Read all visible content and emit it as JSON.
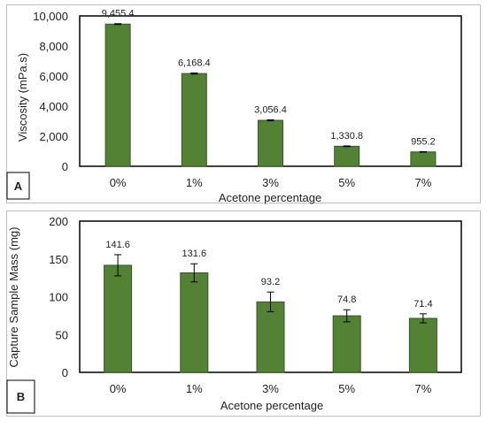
{
  "colors": {
    "bar": "#548235",
    "bar_edge": "#375623",
    "axis": "#000000"
  },
  "chart_data": [
    {
      "type": "bar",
      "panel_label": "A",
      "categories": [
        "0%",
        "1%",
        "3%",
        "5%",
        "7%"
      ],
      "values": [
        9455.4,
        6168.4,
        3056.4,
        1330.8,
        955.2
      ],
      "value_labels": [
        "9,455.4",
        "6,168.4",
        "3,056.4",
        "1,330.8",
        "955.2"
      ],
      "errors": [
        30,
        40,
        35,
        25,
        20
      ],
      "yticks": [
        "0",
        "2,000",
        "4,000",
        "6,000",
        "8,000",
        "10,000"
      ],
      "ylim": [
        0,
        10000
      ],
      "xlabel": "Acetone percentage",
      "ylabel": "Viscosity (mPa.s)",
      "grid": false
    },
    {
      "type": "bar",
      "panel_label": "B",
      "categories": [
        "0%",
        "1%",
        "3%",
        "5%",
        "7%"
      ],
      "values": [
        141.6,
        131.6,
        93.2,
        74.8,
        71.4
      ],
      "value_labels": [
        "141.6",
        "131.6",
        "93.2",
        "74.8",
        "71.4"
      ],
      "errors": [
        14,
        12,
        13,
        8,
        6
      ],
      "yticks": [
        "0",
        "50",
        "100",
        "150",
        "200"
      ],
      "ylim": [
        0,
        200
      ],
      "xlabel": "Acetone percentage",
      "ylabel": "Capture Sample Mass (mg)",
      "grid": false
    }
  ]
}
